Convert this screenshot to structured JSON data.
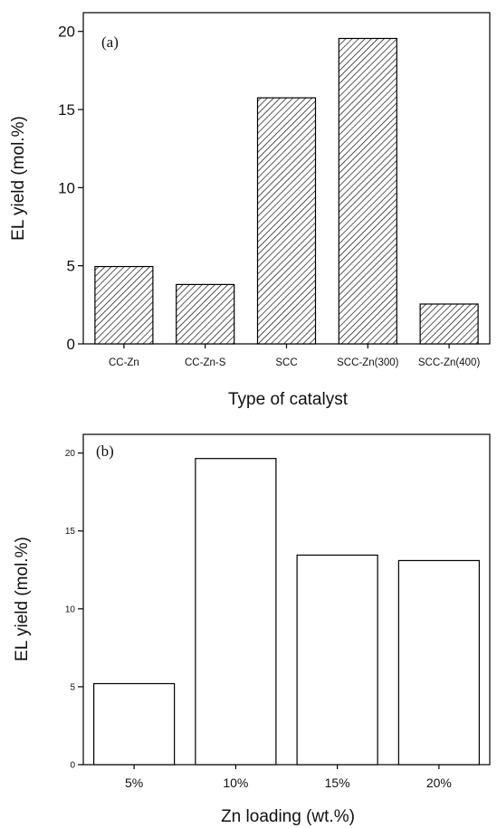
{
  "chart_data": [
    {
      "type": "bar",
      "panel_label": "(a)",
      "categories": [
        "CC-Zn",
        "CC-Zn-S",
        "SCC",
        "SCC-Zn(300)",
        "SCC-Zn(400)"
      ],
      "values": [
        4.95,
        3.8,
        15.75,
        19.55,
        2.55
      ],
      "xlabel": "Type of catalyst",
      "ylabel": "EL yield (mol.%)",
      "ylim": [
        0,
        21.2
      ],
      "yticks": [
        0,
        5,
        10,
        15,
        20
      ],
      "fill": "hatched",
      "bar_color": "#000000",
      "grid": false
    },
    {
      "type": "bar",
      "panel_label": "(b)",
      "categories": [
        "5%",
        "10%",
        "15%",
        "20%"
      ],
      "values": [
        5.2,
        19.65,
        13.45,
        13.1
      ],
      "xlabel": "Zn loading (wt.%)",
      "ylabel": "EL yield (mol.%)",
      "ylim": [
        0,
        21.2
      ],
      "yticks": [
        0,
        5,
        10,
        15,
        20
      ],
      "fill": "white",
      "bar_color": "#000000",
      "grid": false
    }
  ]
}
